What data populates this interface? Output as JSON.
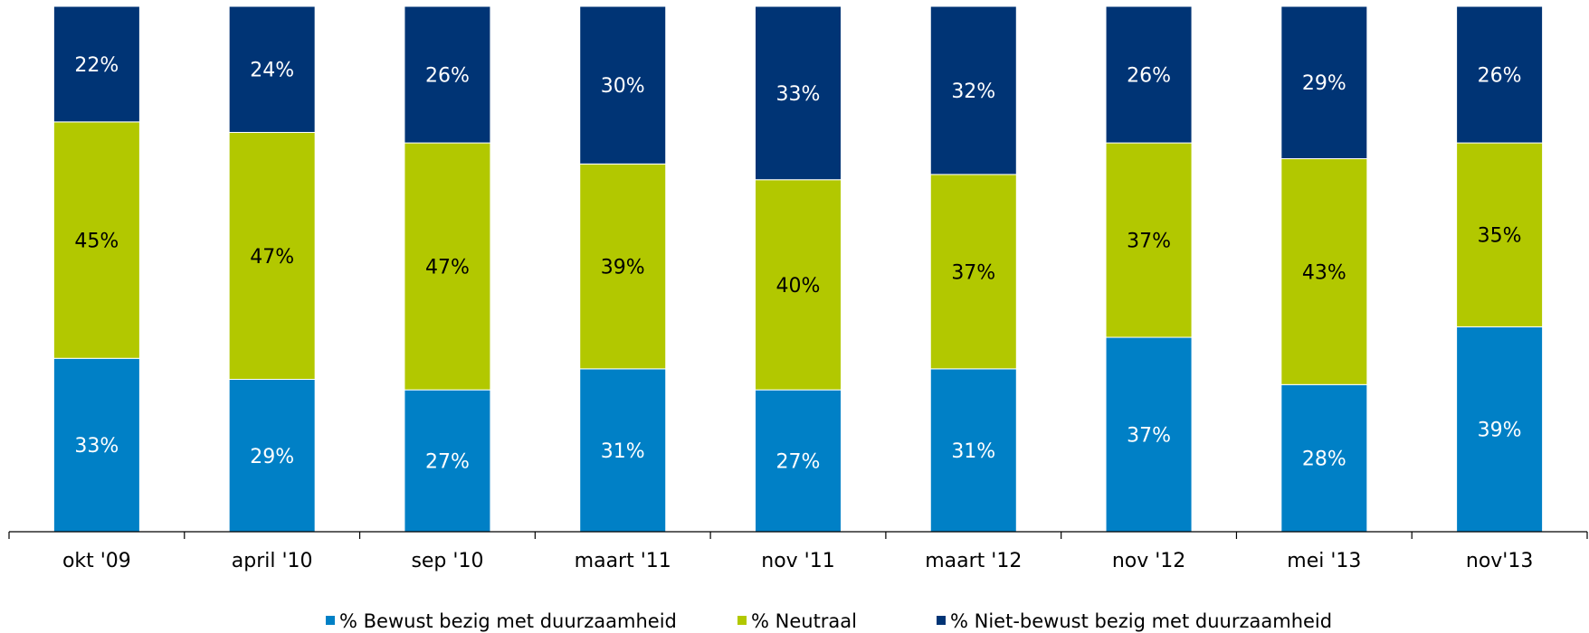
{
  "chart_data": {
    "type": "bar",
    "stacked": true,
    "normalized": true,
    "categories": [
      "okt '09",
      "april '10",
      "sep '10",
      "maart '11",
      "nov '11",
      "maart '12",
      "nov '12",
      "mei '13",
      "nov'13"
    ],
    "series": [
      {
        "name": "% Bewust bezig met duurzaamheid",
        "color": "#0080C6",
        "label_color": "#FFFFFF",
        "values": [
          33,
          29,
          27,
          31,
          27,
          31,
          37,
          28,
          39
        ]
      },
      {
        "name": "% Neutraal",
        "color": "#B2C800",
        "label_color": "#000000",
        "values": [
          45,
          47,
          47,
          39,
          40,
          37,
          37,
          43,
          35
        ]
      },
      {
        "name": "% Niet-bewust bezig met duurzaamheid",
        "color": "#003475",
        "label_color": "#FFFFFF",
        "values": [
          22,
          24,
          26,
          30,
          33,
          32,
          26,
          29,
          26
        ]
      }
    ],
    "data_labels": [
      [
        "33%",
        "29%",
        "27%",
        "31%",
        "27%",
        "31%",
        "37%",
        "28%",
        "39%"
      ],
      [
        "45%",
        "47%",
        "47%",
        "39%",
        "40%",
        "37%",
        "37%",
        "43%",
        "35%"
      ],
      [
        "22%",
        "24%",
        "26%",
        "30%",
        "33%",
        "32%",
        "26%",
        "29%",
        "26%"
      ]
    ],
    "legend_position": "bottom",
    "grid": false
  }
}
